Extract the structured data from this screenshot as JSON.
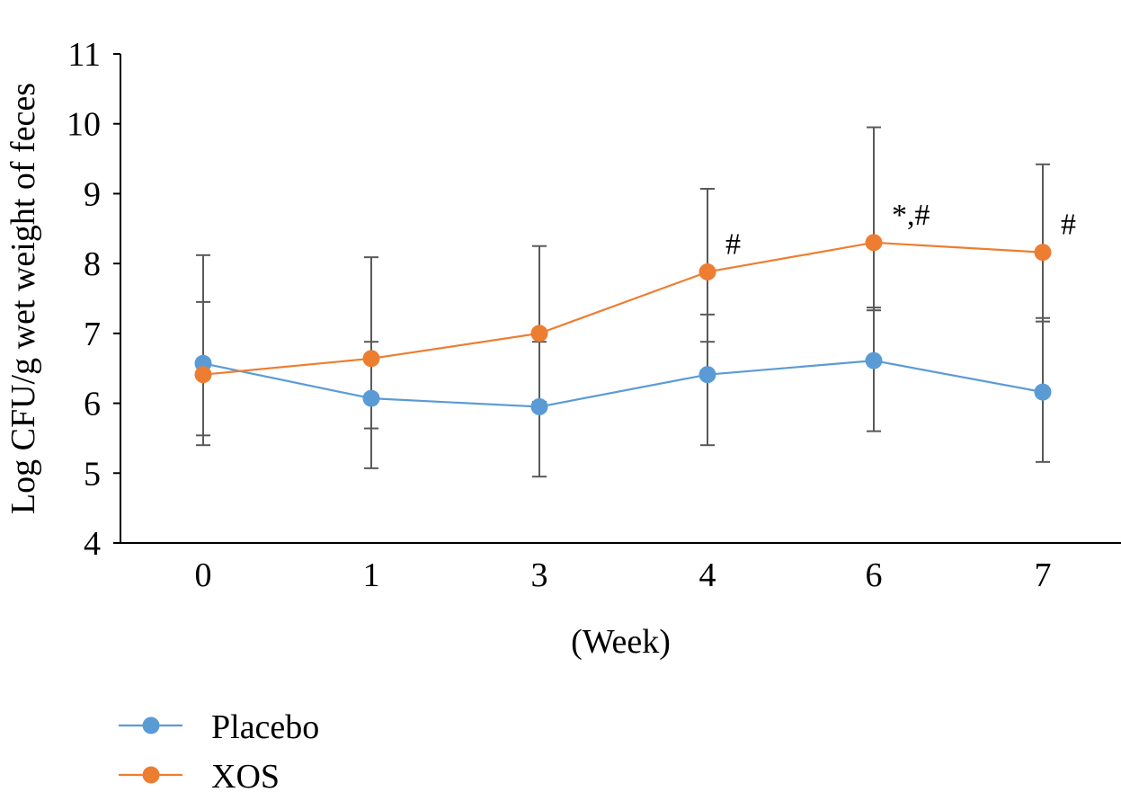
{
  "chart_data": {
    "type": "line",
    "categories": [
      "0",
      "1",
      "3",
      "4",
      "6",
      "7"
    ],
    "xlabel": "(Week)",
    "ylabel": "Log CFU/g wet weight of feces",
    "ylim": [
      4,
      11
    ],
    "yticks": [
      "4",
      "5",
      "6",
      "7",
      "8",
      "9",
      "10",
      "11"
    ],
    "grid": false,
    "legend_position": "bottom-left",
    "series": [
      {
        "name": "Placebo",
        "color": "#5B9BD5",
        "values": [
          6.57,
          6.07,
          5.95,
          6.41,
          6.61,
          6.16
        ],
        "err_low": [
          5.54,
          5.07,
          4.95,
          5.4,
          5.6,
          5.16
        ],
        "err_high": [
          7.45,
          6.88,
          6.88,
          7.27,
          7.37,
          7.22
        ]
      },
      {
        "name": "XOS",
        "color": "#ED7D31",
        "values": [
          6.41,
          6.64,
          7.0,
          7.88,
          8.3,
          8.16
        ],
        "err_low": [
          5.4,
          5.64,
          6.02,
          6.88,
          7.33,
          7.17
        ],
        "err_high": [
          8.12,
          8.09,
          8.25,
          9.07,
          9.95,
          9.42
        ]
      }
    ],
    "annotations": [
      {
        "category": "4",
        "series": "XOS",
        "text": "#"
      },
      {
        "category": "6",
        "series": "XOS",
        "text": "*,#"
      },
      {
        "category": "7",
        "series": "XOS",
        "text": "#"
      }
    ],
    "errorbar_color": "#595959"
  }
}
